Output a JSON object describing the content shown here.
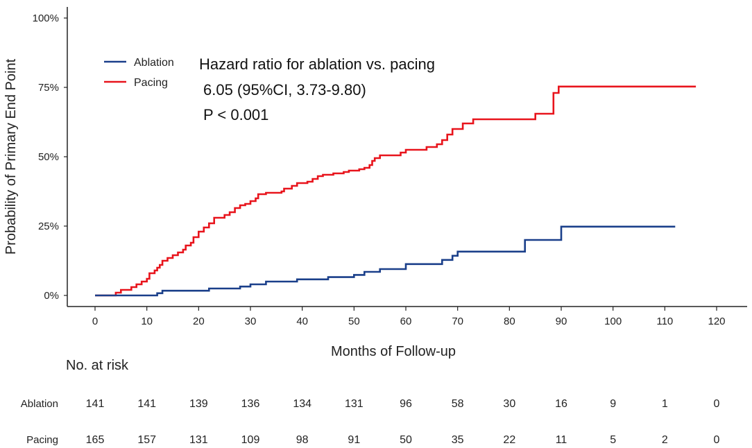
{
  "chart_data": {
    "type": "line",
    "subtype": "kaplan-meier-step",
    "xlabel": "Months of Follow-up",
    "ylabel": "Probability of Primary End Point",
    "xlim": [
      0,
      120
    ],
    "ylim": [
      0,
      100
    ],
    "x_ticks": [
      0,
      10,
      20,
      30,
      40,
      50,
      60,
      70,
      80,
      90,
      100,
      110,
      120
    ],
    "y_ticks": [
      0,
      25,
      50,
      75,
      100
    ],
    "y_tick_labels": [
      "0%",
      "25%",
      "50%",
      "75%",
      "100%"
    ],
    "legend": {
      "placement": "top-left",
      "entries": [
        "Ablation",
        "Pacing"
      ]
    },
    "annotations": [
      "Hazard ratio for ablation vs. pacing",
      "6.05 (95%CI, 3.73-9.80)",
      "P < 0.001"
    ],
    "series": [
      {
        "name": "Pacing",
        "color": "#e8141c",
        "points": [
          [
            0,
            0
          ],
          [
            4,
            0
          ],
          [
            4,
            1
          ],
          [
            5,
            1
          ],
          [
            5,
            2
          ],
          [
            7,
            2
          ],
          [
            7,
            3
          ],
          [
            8,
            3
          ],
          [
            8,
            4
          ],
          [
            9,
            4
          ],
          [
            9,
            5
          ],
          [
            10,
            5
          ],
          [
            10,
            6
          ],
          [
            10.5,
            6
          ],
          [
            10.5,
            8
          ],
          [
            11.5,
            8
          ],
          [
            11.5,
            9
          ],
          [
            12,
            9
          ],
          [
            12,
            10
          ],
          [
            12.5,
            10
          ],
          [
            12.5,
            11
          ],
          [
            13,
            11
          ],
          [
            13,
            12.5
          ],
          [
            14,
            12.5
          ],
          [
            14,
            13.5
          ],
          [
            15,
            13.5
          ],
          [
            15,
            14.5
          ],
          [
            16,
            14.5
          ],
          [
            16,
            15.5
          ],
          [
            17,
            15.5
          ],
          [
            17,
            16.5
          ],
          [
            17.5,
            16.5
          ],
          [
            17.5,
            18
          ],
          [
            18.5,
            18
          ],
          [
            18.5,
            19
          ],
          [
            19,
            19
          ],
          [
            19,
            21
          ],
          [
            20,
            21
          ],
          [
            20,
            23
          ],
          [
            21,
            23
          ],
          [
            21,
            24.5
          ],
          [
            22,
            24.5
          ],
          [
            22,
            26
          ],
          [
            23,
            26
          ],
          [
            23,
            28
          ],
          [
            25,
            28
          ],
          [
            25,
            29
          ],
          [
            26,
            29
          ],
          [
            26,
            30
          ],
          [
            27,
            30
          ],
          [
            27,
            31.5
          ],
          [
            28,
            31.5
          ],
          [
            28,
            32.5
          ],
          [
            29,
            32.5
          ],
          [
            29,
            33
          ],
          [
            30,
            33
          ],
          [
            30,
            34
          ],
          [
            31,
            34
          ],
          [
            31,
            35
          ],
          [
            31.5,
            35
          ],
          [
            31.5,
            36.5
          ],
          [
            33,
            36.5
          ],
          [
            33,
            37
          ],
          [
            36,
            37
          ],
          [
            36,
            37.5
          ],
          [
            36.5,
            37.5
          ],
          [
            36.5,
            38.5
          ],
          [
            38,
            38.5
          ],
          [
            38,
            39.5
          ],
          [
            39,
            39.5
          ],
          [
            39,
            40.5
          ],
          [
            41,
            40.5
          ],
          [
            41,
            41
          ],
          [
            42,
            41
          ],
          [
            42,
            42
          ],
          [
            43,
            42
          ],
          [
            43,
            43
          ],
          [
            44,
            43
          ],
          [
            44,
            43.5
          ],
          [
            46,
            43.5
          ],
          [
            46,
            44
          ],
          [
            48,
            44
          ],
          [
            48,
            44.5
          ],
          [
            49,
            44.5
          ],
          [
            49,
            45
          ],
          [
            51,
            45
          ],
          [
            51,
            45.5
          ],
          [
            52,
            45.5
          ],
          [
            52,
            46
          ],
          [
            53,
            46
          ],
          [
            53,
            47
          ],
          [
            53.5,
            47
          ],
          [
            53.5,
            48.5
          ],
          [
            54,
            48.5
          ],
          [
            54,
            49.5
          ],
          [
            55,
            49.5
          ],
          [
            55,
            50.5
          ],
          [
            59,
            50.5
          ],
          [
            59,
            51.5
          ],
          [
            60,
            51.5
          ],
          [
            60,
            52.5
          ],
          [
            64,
            52.5
          ],
          [
            64,
            53.5
          ],
          [
            66,
            53.5
          ],
          [
            66,
            54.5
          ],
          [
            67,
            54.5
          ],
          [
            67,
            56
          ],
          [
            68,
            56
          ],
          [
            68,
            58
          ],
          [
            69,
            58
          ],
          [
            69,
            60
          ],
          [
            71,
            60
          ],
          [
            71,
            62
          ],
          [
            73,
            62
          ],
          [
            73,
            63.5
          ],
          [
            85,
            63.5
          ],
          [
            85,
            65.5
          ],
          [
            88.5,
            65.5
          ],
          [
            88.5,
            73
          ],
          [
            89.5,
            73
          ],
          [
            89.5,
            75.3
          ],
          [
            116,
            75.3
          ]
        ]
      },
      {
        "name": "Ablation",
        "color": "#1a3f8a",
        "points": [
          [
            0,
            0
          ],
          [
            12,
            0
          ],
          [
            12,
            0.8
          ],
          [
            13,
            0.8
          ],
          [
            13,
            1.7
          ],
          [
            22,
            1.7
          ],
          [
            22,
            2.5
          ],
          [
            28,
            2.5
          ],
          [
            28,
            3.2
          ],
          [
            30,
            3.2
          ],
          [
            30,
            4
          ],
          [
            33,
            4
          ],
          [
            33,
            5
          ],
          [
            39,
            5
          ],
          [
            39,
            5.8
          ],
          [
            45,
            5.8
          ],
          [
            45,
            6.6
          ],
          [
            50,
            6.6
          ],
          [
            50,
            7.4
          ],
          [
            52,
            7.4
          ],
          [
            52,
            8.5
          ],
          [
            55,
            8.5
          ],
          [
            55,
            9.5
          ],
          [
            60,
            9.5
          ],
          [
            60,
            11.3
          ],
          [
            67,
            11.3
          ],
          [
            67,
            12.8
          ],
          [
            69,
            12.8
          ],
          [
            69,
            14.3
          ],
          [
            70,
            14.3
          ],
          [
            70,
            15.8
          ],
          [
            83,
            15.8
          ],
          [
            83,
            20
          ],
          [
            90,
            20
          ],
          [
            90,
            24.8
          ],
          [
            112,
            24.8
          ]
        ]
      }
    ]
  },
  "risk_table": {
    "title": "No. at risk",
    "times": [
      0,
      10,
      20,
      30,
      40,
      50,
      60,
      70,
      80,
      90,
      100,
      110,
      120
    ],
    "rows": [
      {
        "label": "Ablation",
        "values": [
          "141",
          "141",
          "139",
          "136",
          "134",
          "131",
          "96",
          "58",
          "30",
          "16",
          "9",
          "1",
          "0"
        ]
      },
      {
        "label": "Pacing",
        "values": [
          "165",
          "157",
          "131",
          "109",
          "98",
          "91",
          "50",
          "35",
          "22",
          "11",
          "5",
          "2",
          "0"
        ]
      }
    ]
  }
}
